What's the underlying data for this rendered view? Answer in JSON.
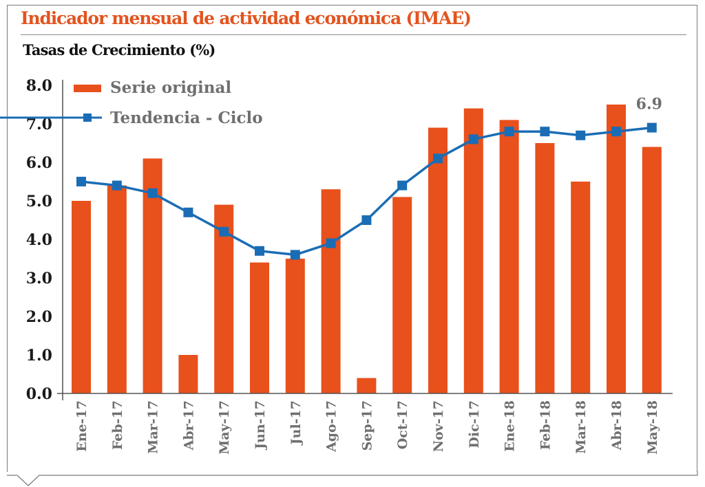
{
  "header": {
    "title": "Indicador mensual de actividad económica (IMAE)",
    "subtitle": "Tasas de Crecimiento (%)"
  },
  "colors": {
    "title": "#e2541f",
    "bar": "#e8501c",
    "line": "#1a6db5",
    "axis_text": "#1a1a1a",
    "label_text": "#6f6f6f"
  },
  "chart_data": {
    "type": "bar",
    "title": "Indicador mensual de actividad económica (IMAE)",
    "subtitle": "Tasas de Crecimiento (%)",
    "xlabel": "",
    "ylabel": "Tasas de Crecimiento (%)",
    "ylim": [
      0,
      8
    ],
    "yticks": [
      "0.0",
      "1.0",
      "2.0",
      "3.0",
      "4.0",
      "5.0",
      "6.0",
      "7.0",
      "8.0"
    ],
    "grid": false,
    "legend_position": "top-left",
    "categories": [
      "Ene-17",
      "Feb-17",
      "Mar-17",
      "Abr-17",
      "May-17",
      "Jun-17",
      "Jul-17",
      "Ago-17",
      "Sep-17",
      "Oct-17",
      "Nov-17",
      "Dic-17",
      "Ene-18",
      "Feb-18",
      "Mar-18",
      "Abr-18",
      "May-18"
    ],
    "series": [
      {
        "name": "Serie original",
        "type": "bar",
        "values": [
          5.0,
          5.4,
          6.1,
          1.0,
          4.9,
          3.4,
          3.5,
          5.3,
          0.4,
          5.1,
          6.9,
          7.4,
          7.1,
          6.5,
          5.5,
          7.5,
          6.4
        ]
      },
      {
        "name": "Tendencia - Ciclo",
        "type": "line",
        "marker": "square",
        "values": [
          5.5,
          5.4,
          5.2,
          4.7,
          4.2,
          3.7,
          3.6,
          3.9,
          4.5,
          5.4,
          6.1,
          6.6,
          6.8,
          6.8,
          6.7,
          6.8,
          6.9
        ]
      }
    ],
    "annotations": [
      {
        "series": "Tendencia - Ciclo",
        "category": "May-18",
        "text": "6.9"
      }
    ]
  }
}
